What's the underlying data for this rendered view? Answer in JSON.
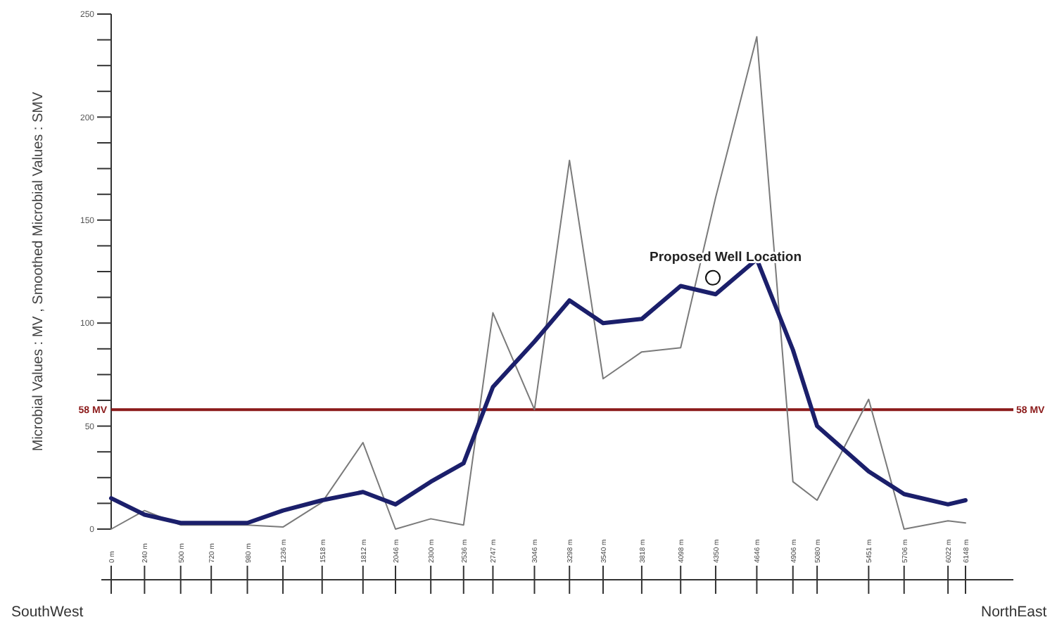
{
  "chart_data": {
    "type": "line",
    "ylabel": "Microbial Values : MV , Smoothed Microbial Values : SMV",
    "x": [
      0,
      240,
      500,
      720,
      980,
      1236,
      1518,
      1812,
      2046,
      2300,
      2536,
      2747,
      3046,
      3298,
      3540,
      3818,
      4098,
      4350,
      4646,
      4906,
      5080,
      5451,
      5706,
      6022,
      6148
    ],
    "series": [
      {
        "color": "#7a7a7a",
        "values": [
          0,
          9,
          2,
          2,
          2,
          1,
          13,
          42,
          0,
          5,
          2,
          105,
          58,
          179,
          73,
          86,
          88,
          161,
          239,
          23,
          14,
          63,
          0,
          4,
          3
        ]
      },
      {
        "color": "#1b1f6b",
        "values": [
          15,
          7,
          3,
          3,
          3,
          9,
          14,
          18,
          12,
          23,
          32,
          69,
          91,
          111,
          100,
          102,
          118,
          114,
          131,
          87,
          50,
          28,
          17,
          12,
          14
        ]
      }
    ],
    "xlim": [
      0,
      6148
    ],
    "xticks": [
      {
        "value": 0,
        "label": "0 m"
      },
      {
        "value": 240,
        "label": "240 m"
      },
      {
        "value": 500,
        "label": "500 m"
      },
      {
        "value": 720,
        "label": "720 m"
      },
      {
        "value": 980,
        "label": "980 m"
      },
      {
        "value": 1236,
        "label": "1236 m"
      },
      {
        "value": 1518,
        "label": "1518 m"
      },
      {
        "value": 1812,
        "label": "1812 m"
      },
      {
        "value": 2046,
        "label": "2046 m"
      },
      {
        "value": 2300,
        "label": "2300 m"
      },
      {
        "value": 2536,
        "label": "2536 m"
      },
      {
        "value": 2747,
        "label": "2747 m"
      },
      {
        "value": 3046,
        "label": "3046 m"
      },
      {
        "value": 3298,
        "label": "3298 m"
      },
      {
        "value": 3540,
        "label": "3540 m"
      },
      {
        "value": 3818,
        "label": "3818 m"
      },
      {
        "value": 4098,
        "label": "4098 m"
      },
      {
        "value": 4350,
        "label": "4350 m"
      },
      {
        "value": 4646,
        "label": "4646 m"
      },
      {
        "value": 4906,
        "label": "4906 m"
      },
      {
        "value": 5080,
        "label": "5080 m"
      },
      {
        "value": 5451,
        "label": "5451 m"
      },
      {
        "value": 5706,
        "label": "5706 m"
      },
      {
        "value": 6022,
        "label": "6022 m"
      },
      {
        "value": 6148,
        "label": "6148 m"
      }
    ],
    "ylim": [
      0,
      250
    ],
    "yticks": [
      0,
      {
        "value": 12.5,
        "label": null
      },
      {
        "value": 25,
        "label": null
      },
      {
        "value": 37.5,
        "label": null
      },
      50,
      {
        "value": 62.5,
        "label": null
      },
      {
        "value": 75,
        "label": null
      },
      {
        "value": 87.5,
        "label": null
      },
      100,
      {
        "value": 112.5,
        "label": null
      },
      {
        "value": 125,
        "label": null
      },
      {
        "value": 137.5,
        "label": null
      },
      150,
      {
        "value": 162.5,
        "label": null
      },
      {
        "value": 175,
        "label": null
      },
      {
        "value": 187.5,
        "label": null
      },
      200,
      {
        "value": 212.5,
        "label": null
      },
      {
        "value": 225,
        "label": null
      },
      {
        "value": 237.5,
        "label": null
      },
      250
    ],
    "ref_lines": [
      {
        "axis": "y",
        "value": 58,
        "label": "58 MV",
        "color": "#8b1a1a"
      }
    ],
    "annotations": [
      {
        "text": "Proposed Well Location",
        "x": 4330,
        "y": 122
      },
      "SouthWest",
      "NorthEast"
    ],
    "grid": false,
    "legend": false,
    "marker": "none",
    "line_style": "solid"
  }
}
